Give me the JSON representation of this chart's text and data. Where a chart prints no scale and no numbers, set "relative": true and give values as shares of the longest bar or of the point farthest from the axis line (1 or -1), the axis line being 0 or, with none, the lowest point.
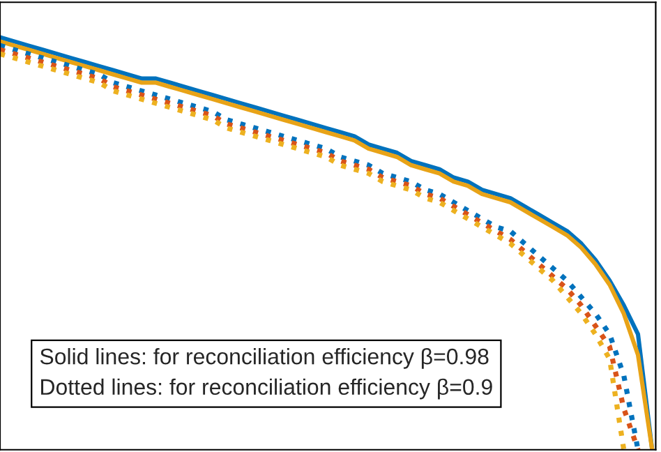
{
  "chart_data": {
    "type": "line",
    "relative": true,
    "grid": false,
    "categories": [
      null,
      null,
      null,
      null,
      null,
      null,
      null,
      null,
      null,
      null,
      null,
      null,
      null,
      null,
      null,
      null,
      null,
      null,
      null,
      null,
      null,
      null,
      null,
      null,
      null,
      null,
      null,
      null,
      null,
      null,
      null,
      null,
      null,
      null,
      null,
      null,
      null,
      null,
      null,
      null,
      null,
      null,
      null,
      null,
      null,
      null,
      null
    ],
    "annotations": [
      "Solid lines: for reconciliation efficiency β=0.98",
      "Dotted lines: for reconciliation efficiency β=0.9"
    ],
    "series": [
      {
        "color": "#0072bd",
        "line_style": "solid",
        "values": [
          1.0,
          0.99,
          0.98,
          0.97,
          0.96,
          0.95,
          0.94,
          0.93,
          0.92,
          0.91,
          0.9,
          0.9,
          0.89,
          0.88,
          0.87,
          0.86,
          0.85,
          0.84,
          0.83,
          0.82,
          0.81,
          0.8,
          0.79,
          0.78,
          0.77,
          0.76,
          0.74,
          0.73,
          0.72,
          0.7,
          0.69,
          0.68,
          0.66,
          0.65,
          0.63,
          0.62,
          0.61,
          0.59,
          0.57,
          0.55,
          0.53,
          0.5,
          0.46,
          0.41,
          0.35,
          0.28,
          0
        ]
      },
      {
        "color": "#e8a317",
        "line_style": "solid",
        "values": [
          0.99,
          0.98,
          0.97,
          0.96,
          0.95,
          0.94,
          0.93,
          0.92,
          0.91,
          0.9,
          0.89,
          0.89,
          0.88,
          0.87,
          0.86,
          0.85,
          0.84,
          0.83,
          0.82,
          0.81,
          0.8,
          0.79,
          0.78,
          0.77,
          0.76,
          0.75,
          0.73,
          0.72,
          0.71,
          0.69,
          0.68,
          0.67,
          0.65,
          0.64,
          0.62,
          0.61,
          0.6,
          0.58,
          0.56,
          0.54,
          0.52,
          0.49,
          0.45,
          0.4,
          0.33,
          0.23,
          0
        ]
      },
      {
        "color": "#0072bd",
        "line_style": "dotted",
        "values": [
          0.98,
          0.97,
          0.96,
          0.95,
          0.94,
          0.93,
          0.92,
          0.91,
          0.89,
          0.88,
          0.87,
          0.86,
          0.85,
          0.84,
          0.83,
          0.82,
          0.8,
          0.79,
          0.78,
          0.77,
          0.76,
          0.75,
          0.74,
          0.73,
          0.71,
          0.7,
          0.69,
          0.67,
          0.66,
          0.65,
          0.63,
          0.62,
          0.6,
          0.58,
          0.56,
          0.54,
          0.53,
          0.5,
          0.47,
          0.44,
          0.41,
          0.37,
          0.33,
          0.28,
          0.18,
          0,
          null
        ]
      },
      {
        "color": "#d95319",
        "line_style": "dotted",
        "values": [
          0.97,
          0.96,
          0.95,
          0.94,
          0.93,
          0.92,
          0.91,
          0.9,
          0.88,
          0.87,
          0.86,
          0.85,
          0.84,
          0.83,
          0.82,
          0.81,
          0.79,
          0.78,
          0.77,
          0.76,
          0.75,
          0.74,
          0.73,
          0.72,
          0.7,
          0.69,
          0.68,
          0.66,
          0.65,
          0.64,
          0.62,
          0.61,
          0.59,
          0.57,
          0.55,
          0.53,
          0.51,
          0.48,
          0.45,
          0.42,
          0.39,
          0.35,
          0.3,
          0.25,
          0.1,
          0,
          null
        ]
      },
      {
        "color": "#edb120",
        "line_style": "dotted",
        "values": [
          0.96,
          0.95,
          0.94,
          0.93,
          0.92,
          0.91,
          0.9,
          0.89,
          0.87,
          0.86,
          0.85,
          0.84,
          0.83,
          0.82,
          0.81,
          0.8,
          0.78,
          0.77,
          0.76,
          0.75,
          0.74,
          0.73,
          0.72,
          0.71,
          0.69,
          0.68,
          0.67,
          0.65,
          0.64,
          0.63,
          0.61,
          0.6,
          0.58,
          0.56,
          0.54,
          0.52,
          0.5,
          0.47,
          0.44,
          0.41,
          0.37,
          0.33,
          0.28,
          0.22,
          0,
          null,
          null
        ]
      }
    ]
  }
}
